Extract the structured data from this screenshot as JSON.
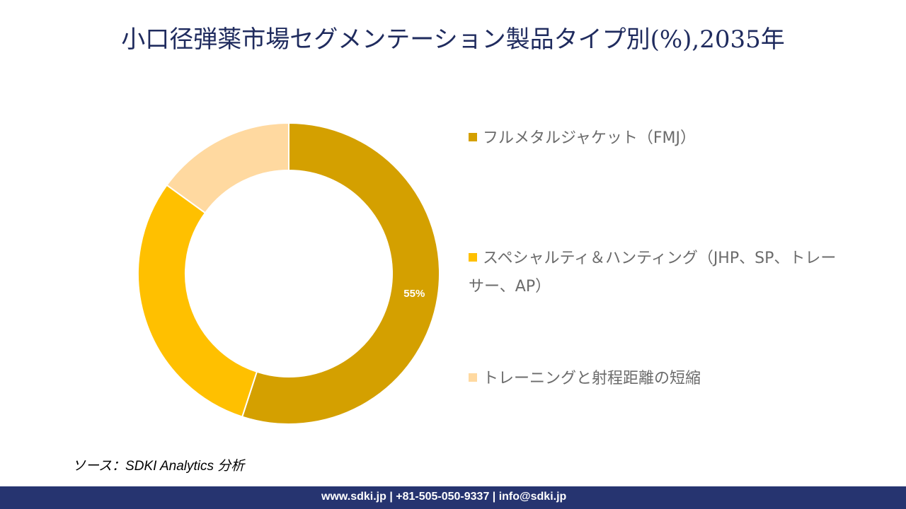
{
  "title": "小口径弾薬市場セグメンテーション製品タイプ別(%),2035年",
  "chart_data": {
    "type": "pie",
    "subtype": "donut",
    "categories": [
      "フルメタルジャケット（FMJ）",
      "スペシャルティ＆ハンティング（JHP、SP、トレーサー、AP）",
      "トレーニングと射程距離の短縮"
    ],
    "values": [
      55,
      30,
      15
    ],
    "data_labels": [
      "55%",
      "",
      ""
    ],
    "colors": [
      "#D4A000",
      "#FFC000",
      "#FFD9A0"
    ],
    "legend_position": "right"
  },
  "source": "ソース：SDKI Analytics 分析",
  "footer": "www.sdki.jp | +81-505-050-9337 | info@sdki.jp"
}
